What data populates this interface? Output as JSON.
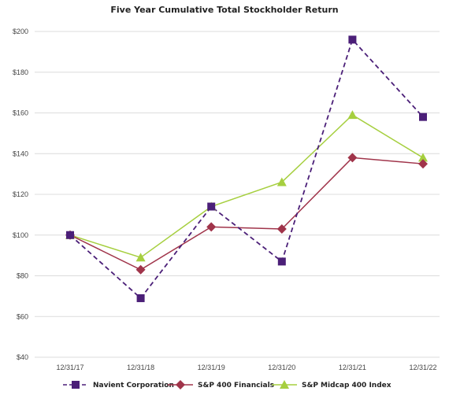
{
  "chart_data": {
    "type": "line",
    "title": "Five Year Cumulative Total Stockholder Return",
    "xlabel": "",
    "ylabel": "",
    "categories": [
      "12/31/17",
      "12/31/18",
      "12/31/19",
      "12/31/20",
      "12/31/21",
      "12/31/22"
    ],
    "ylim": [
      40,
      200
    ],
    "yticks": [
      "$40",
      "$60",
      "$80",
      "$100",
      "$120",
      "$140",
      "$160",
      "$180",
      "$200"
    ],
    "ytick_values": [
      40,
      60,
      80,
      100,
      120,
      140,
      160,
      180,
      200
    ],
    "grid": "horizontal",
    "legend_position": "bottom",
    "series": [
      {
        "name": "Navient Corporation",
        "values": [
          100,
          69,
          114,
          87,
          196,
          158
        ],
        "color": "#4b1f78",
        "marker": "square",
        "dash": "dashed"
      },
      {
        "name": "S&P 400 Financials",
        "values": [
          100,
          83,
          104,
          103,
          138,
          135
        ],
        "color": "#a0344a",
        "marker": "diamond",
        "dash": "solid"
      },
      {
        "name": "S&P Midcap 400 Index",
        "values": [
          100,
          89,
          114,
          126,
          159,
          138
        ],
        "color": "#a6cf3f",
        "marker": "triangle",
        "dash": "solid"
      }
    ]
  }
}
